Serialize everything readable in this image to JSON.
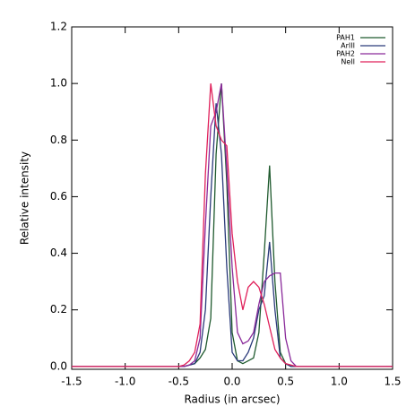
{
  "chart_data": {
    "type": "line",
    "xlabel": "Radius (in arcsec)",
    "ylabel": "Relative intensity",
    "x": [
      -1.5,
      -0.5,
      -0.45,
      -0.4,
      -0.35,
      -0.3,
      -0.25,
      -0.2,
      -0.15,
      -0.1,
      -0.05,
      0,
      0.05,
      0.1,
      0.15,
      0.2,
      0.25,
      0.3,
      0.35,
      0.4,
      0.45,
      0.5,
      0.55,
      0.6,
      0.65,
      0.7,
      1.5
    ],
    "series": [
      {
        "name": "PAH1",
        "color": "#1f5a2e",
        "values": [
          0,
          0,
          0,
          0.005,
          0.01,
          0.03,
          0.06,
          0.17,
          0.75,
          1.0,
          0.65,
          0.12,
          0.02,
          0.01,
          0.02,
          0.03,
          0.12,
          0.4,
          0.71,
          0.3,
          0.05,
          0.01,
          0,
          0,
          0,
          0,
          0
        ]
      },
      {
        "name": "ArIII",
        "color": "#2a3a7a",
        "values": [
          0,
          0,
          0,
          0.005,
          0.01,
          0.05,
          0.2,
          0.6,
          0.93,
          0.75,
          0.35,
          0.05,
          0.02,
          0.02,
          0.05,
          0.1,
          0.2,
          0.25,
          0.44,
          0.2,
          0.03,
          0.01,
          0,
          0,
          0,
          0,
          0
        ]
      },
      {
        "name": "PAH2",
        "color": "#8a2a9a",
        "values": [
          0,
          0,
          0,
          0.005,
          0.02,
          0.1,
          0.5,
          0.85,
          0.9,
          1.0,
          0.7,
          0.35,
          0.12,
          0.08,
          0.09,
          0.12,
          0.22,
          0.3,
          0.32,
          0.33,
          0.33,
          0.1,
          0.02,
          0,
          0,
          0,
          0
        ]
      },
      {
        "name": "NeII",
        "color": "#e0205a",
        "values": [
          0,
          0,
          0.005,
          0.02,
          0.05,
          0.15,
          0.68,
          1.0,
          0.85,
          0.8,
          0.78,
          0.47,
          0.3,
          0.2,
          0.28,
          0.3,
          0.28,
          0.22,
          0.14,
          0.06,
          0.03,
          0.01,
          0.005,
          0,
          0,
          0,
          0
        ]
      }
    ],
    "xlim": [
      -1.5,
      1.5
    ],
    "xticks": [
      {
        "value": -1.5,
        "label": "-1.5"
      },
      {
        "value": -1.0,
        "label": "-1.0"
      },
      {
        "value": -0.5,
        "label": "-0.5"
      },
      {
        "value": 0,
        "label": "0.0"
      },
      {
        "value": 0.5,
        "label": "0.5"
      },
      {
        "value": 1.0,
        "label": "1.0"
      },
      {
        "value": 1.5,
        "label": "1.5"
      }
    ],
    "ylim": [
      -0.01,
      1.2
    ],
    "yticks": [
      {
        "value": 0,
        "label": "0.0"
      },
      0.2,
      0.4,
      0.6,
      0.8,
      {
        "value": 1.0,
        "label": "1.0"
      },
      1.2
    ],
    "legend": "upper right"
  }
}
